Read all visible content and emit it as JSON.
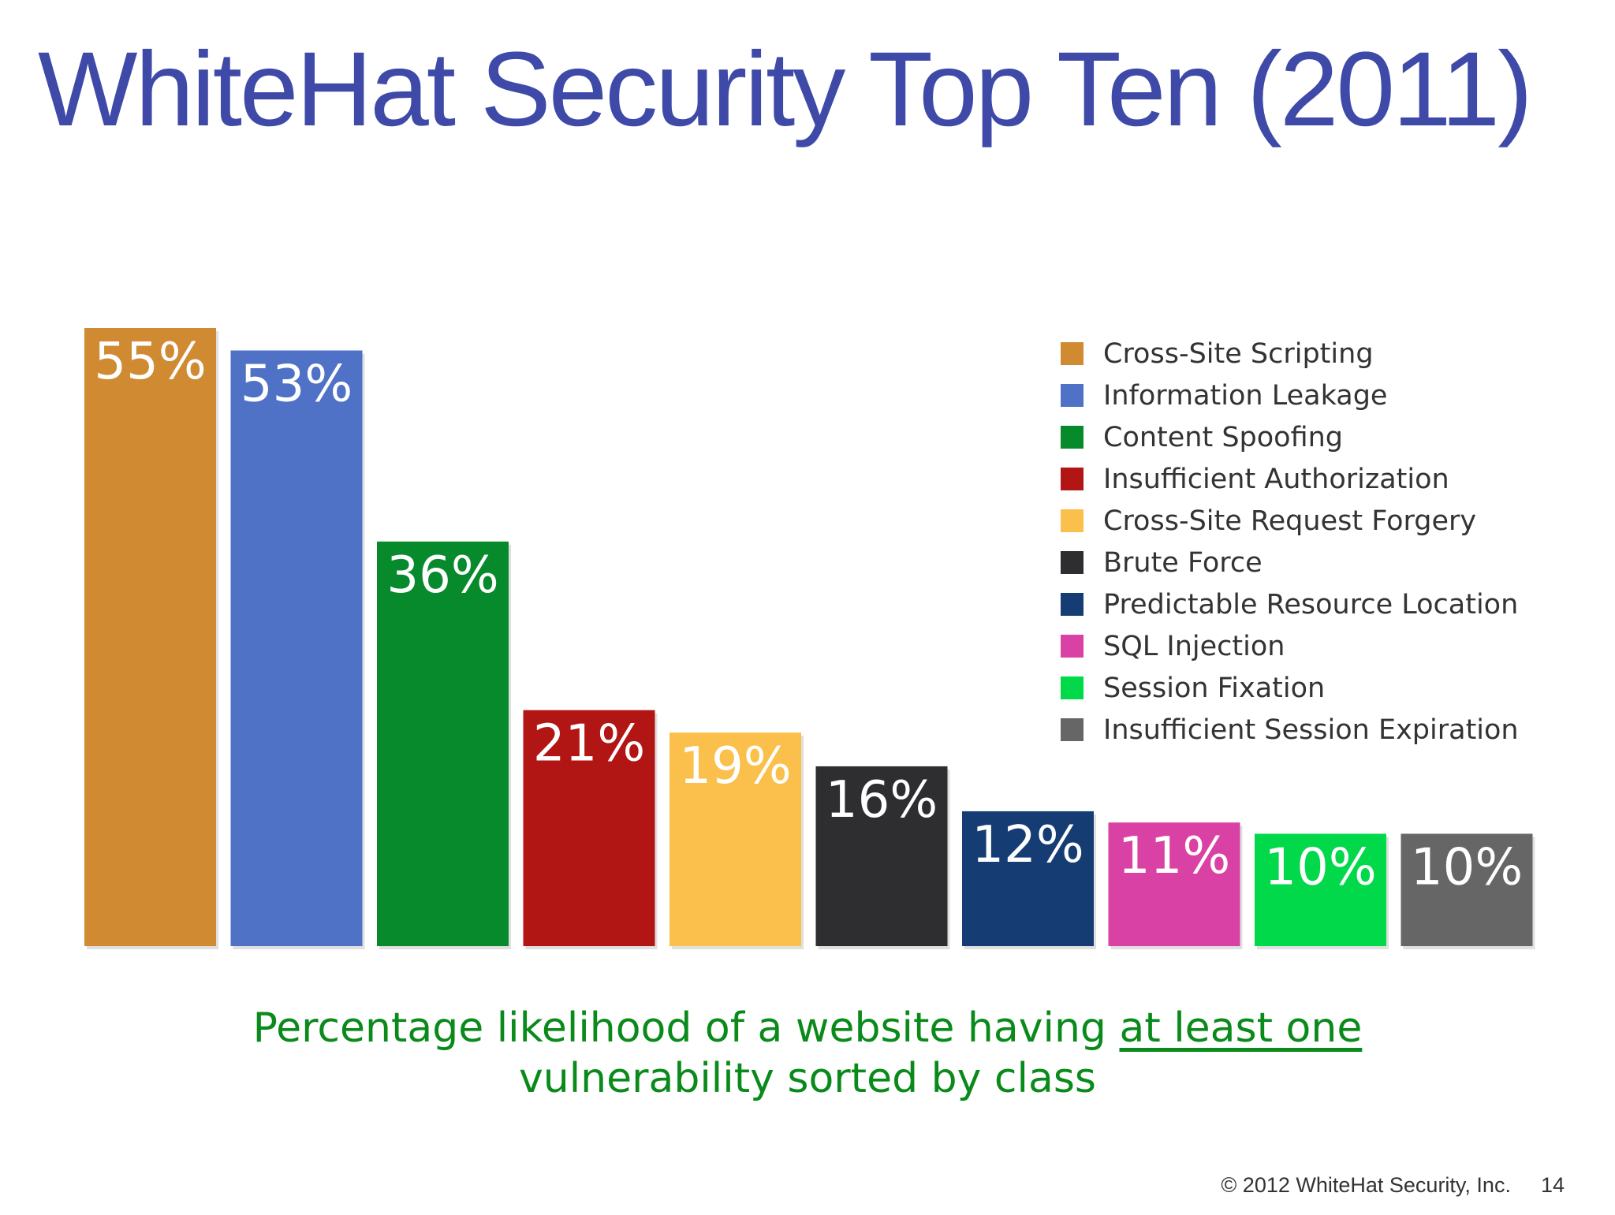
{
  "title": "WhiteHat Security Top Ten (2011)",
  "chart_data": {
    "type": "bar",
    "categories": [
      "Cross-Site Scripting",
      "Information Leakage",
      "Content Spoofing",
      "Insufficient Authorization",
      "Cross-Site Request Forgery",
      "Brute Force",
      "Predictable Resource Location",
      "SQL Injection",
      "Session Fixation",
      "Insufficient Session Expiration"
    ],
    "values": [
      55,
      53,
      36,
      21,
      19,
      16,
      12,
      11,
      10,
      10
    ],
    "value_labels": [
      "55%",
      "53%",
      "36%",
      "21%",
      "19%",
      "16%",
      "12%",
      "11%",
      "10%",
      "10%"
    ],
    "colors": [
      "#d08a32",
      "#4f72c6",
      "#078a2c",
      "#b21614",
      "#fbc04c",
      "#2e2d30",
      "#153d74",
      "#d942a4",
      "#02d94a",
      "#666666"
    ],
    "ylim": [
      0,
      55
    ],
    "grid": false,
    "legend_position": "top-right"
  },
  "caption": {
    "line1_prefix": "Percentage likelihood of a website having ",
    "line1_emphasis": "at least one",
    "line2": "vulnerability sorted by class"
  },
  "footer": {
    "copyright": "© 2012 WhiteHat Security, Inc.",
    "page_number": "14"
  }
}
